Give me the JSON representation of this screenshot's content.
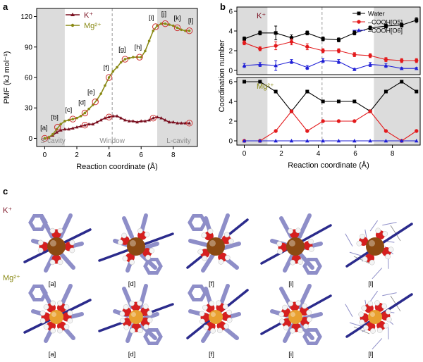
{
  "panels": {
    "a": {
      "letter": "a"
    },
    "b": {
      "letter": "b"
    },
    "c": {
      "letter": "c"
    }
  },
  "colors": {
    "k": "#7a1020",
    "mg": "#8a8a16",
    "water": "#000000",
    "o5": "#e31a1c",
    "o6": "#1f1fd6",
    "shade": "#dcdcdc",
    "ring": "#cc3333",
    "stick": "#8e8ec8",
    "axis_rod": "#2b2b8c",
    "k_ion": "#8b4a12",
    "mg_ion": "#e8a030",
    "oxygen": "#d61f1f",
    "hydrogen": "#f4f4f4"
  },
  "chart_data": [
    {
      "type": "line",
      "panel": "a",
      "xlabel": "Reaction coordinate (Å)",
      "ylabel": "PMF (kJ mol⁻¹)",
      "xlim": [
        -0.5,
        9.5
      ],
      "ylim": [
        -8,
        128
      ],
      "xticks": [
        0,
        2,
        4,
        6,
        8
      ],
      "yticks": [
        0,
        30,
        60,
        90,
        120
      ],
      "legend_position": "top-left",
      "regions": [
        {
          "label": "S-cavity",
          "from": -0.5,
          "to": 1.25,
          "shaded": true
        },
        {
          "label": "Window",
          "at": 4.2,
          "dashed": true
        },
        {
          "label": "L-cavity",
          "from": 7.0,
          "to": 9.5,
          "shaded": true
        }
      ],
      "series": [
        {
          "name": "K⁺",
          "marker": "triangle",
          "x": [
            0,
            0.25,
            0.5,
            0.75,
            1,
            1.25,
            1.5,
            1.75,
            2,
            2.25,
            2.5,
            2.75,
            3,
            3.25,
            3.5,
            3.75,
            4,
            4.25,
            4.5,
            4.75,
            5,
            5.25,
            5.5,
            5.75,
            6,
            6.25,
            6.5,
            6.75,
            7,
            7.25,
            7.5,
            7.75,
            8,
            8.25,
            8.5,
            8.75,
            9
          ],
          "y": [
            0,
            1,
            3,
            6,
            8,
            9,
            9,
            10,
            11,
            12,
            13,
            14,
            14,
            16,
            18,
            20,
            21,
            22,
            22,
            20,
            18,
            17,
            17,
            16,
            17,
            17,
            18,
            20,
            21,
            20,
            18,
            16,
            16,
            15,
            15,
            15,
            15
          ]
        },
        {
          "name": "Mg²⁺",
          "marker": "circle",
          "x": [
            0,
            0.25,
            0.5,
            0.75,
            1,
            1.25,
            1.5,
            1.75,
            2,
            2.25,
            2.5,
            2.75,
            3,
            3.25,
            3.5,
            3.75,
            4,
            4.25,
            4.5,
            4.75,
            5,
            5.25,
            5.5,
            5.75,
            6,
            6.25,
            6.5,
            6.75,
            7,
            7.25,
            7.5,
            7.75,
            8,
            8.25,
            8.5,
            8.75,
            9
          ],
          "y": [
            0,
            1,
            4,
            9,
            14,
            17,
            18,
            19,
            20,
            22,
            25,
            29,
            33,
            38,
            44,
            52,
            60,
            66,
            70,
            75,
            78,
            79,
            80,
            80,
            80,
            86,
            96,
            106,
            111,
            113,
            113,
            112,
            111,
            109,
            107,
            106,
            106
          ]
        }
      ],
      "annotations": [
        {
          "label": "[a]",
          "x": 0.0,
          "y": 0,
          "series": "both"
        },
        {
          "label": "[b]",
          "x": 0.8,
          "y": 11,
          "series": "Mg²⁺"
        },
        {
          "label": "[c]",
          "x": 1.75,
          "y": 19,
          "series": "Mg²⁺"
        },
        {
          "label": "[d]",
          "x": 2.5,
          "y": 25,
          "series": "both"
        },
        {
          "label": "[e]",
          "x": 3.15,
          "y": 36,
          "series": "Mg²⁺"
        },
        {
          "label": "[f]",
          "x": 4.0,
          "y": 60,
          "series": "both"
        },
        {
          "label": "[g]",
          "x": 5.0,
          "y": 78,
          "series": "Mg²⁺"
        },
        {
          "label": "[h]",
          "x": 5.9,
          "y": 80,
          "series": "Mg²⁺"
        },
        {
          "label": "[i]",
          "x": 6.9,
          "y": 110,
          "series": "both"
        },
        {
          "label": "[j]",
          "x": 7.5,
          "y": 113,
          "series": "Mg²⁺"
        },
        {
          "label": "[k]",
          "x": 8.25,
          "y": 109,
          "series": "Mg²⁺"
        },
        {
          "label": "[l]",
          "x": 9.0,
          "y": 106,
          "series": "both"
        }
      ]
    },
    {
      "type": "line",
      "panel": "b",
      "xlabel": "Reaction coordinate (Å)",
      "ylabel": "Coordination number",
      "xlim": [
        -0.4,
        9.5
      ],
      "xticks": [
        0,
        2,
        4,
        6,
        8
      ],
      "legend_position": "top-right",
      "regions": [
        {
          "from": -0.4,
          "to": 1.25,
          "shaded": true
        },
        {
          "at": 4.2,
          "dashed": true
        },
        {
          "from": 7.0,
          "to": 9.5,
          "shaded": true
        }
      ],
      "subplots": [
        {
          "ion": "K⁺",
          "ylim": [
            0,
            6
          ],
          "yticks": [
            0,
            2,
            4,
            6
          ],
          "x": [
            0,
            0.85,
            1.7,
            2.55,
            3.4,
            4.25,
            5.1,
            5.95,
            6.8,
            7.65,
            8.5,
            9.3
          ],
          "series": [
            {
              "name": "Water",
              "marker": "square",
              "values": [
                3.2,
                3.8,
                3.8,
                3.3,
                3.8,
                3.2,
                3.1,
                3.8,
                4.3,
                4.5,
                4.6,
                5.1
              ],
              "errors": [
                0.2,
                0.2,
                0.7,
                0.3,
                0.2,
                0.2,
                0.2,
                0.2,
                0.2,
                0.2,
                0.2,
                0.25
              ]
            },
            {
              "name": "–COOH[O5]",
              "marker": "circle",
              "values": [
                2.8,
                2.2,
                2.5,
                2.9,
                2.4,
                2.0,
                2.0,
                1.6,
                1.5,
                1.1,
                1.0,
                1.0
              ],
              "errors": [
                0.2,
                0.2,
                0.4,
                0.3,
                0.3,
                0.2,
                0.2,
                0.2,
                0.2,
                0.2,
                0.2,
                0.2
              ]
            },
            {
              "name": "–COOH[O6]",
              "marker": "triangle",
              "values": [
                0.5,
                0.6,
                0.5,
                0.9,
                0.3,
                1.0,
                0.9,
                0.1,
                0.6,
                0.5,
                0.2,
                0.2
              ],
              "errors": [
                0.2,
                0.2,
                0.5,
                0.2,
                0.2,
                0.2,
                0.2,
                0.1,
                0.2,
                0.2,
                0.1,
                0.1
              ]
            }
          ]
        },
        {
          "ion": "Mg²⁺",
          "ylim": [
            0,
            6
          ],
          "yticks": [
            0,
            2,
            4,
            6
          ],
          "x": [
            0,
            0.85,
            1.7,
            2.55,
            3.4,
            4.25,
            5.1,
            5.95,
            6.8,
            7.65,
            8.5,
            9.3
          ],
          "series": [
            {
              "name": "Water",
              "marker": "square",
              "values": [
                6,
                6,
                5,
                3,
                5,
                4,
                4,
                4,
                3,
                5,
                6,
                5
              ]
            },
            {
              "name": "–COOH[O5]",
              "marker": "circle",
              "values": [
                0,
                0,
                1,
                3,
                1,
                2,
                2,
                2,
                3,
                1,
                0,
                1
              ]
            },
            {
              "name": "–COOH[O6]",
              "marker": "triangle",
              "values": [
                0,
                0,
                0,
                0,
                0,
                0,
                0,
                0,
                0,
                0,
                0,
                0
              ]
            }
          ]
        }
      ]
    }
  ],
  "structures": {
    "rows": [
      {
        "ion_label": "K⁺",
        "ion": "k",
        "frames": [
          {
            "label": "[a]"
          },
          {
            "label": "[d]"
          },
          {
            "label": "[f]"
          },
          {
            "label": "[i]"
          },
          {
            "label": "[l]"
          }
        ]
      },
      {
        "ion_label": "Mg²⁺",
        "ion": "mg",
        "frames": [
          {
            "label": "[a]"
          },
          {
            "label": "[d]"
          },
          {
            "label": "[f]"
          },
          {
            "label": "[i]"
          },
          {
            "label": "[l]"
          }
        ]
      }
    ]
  }
}
